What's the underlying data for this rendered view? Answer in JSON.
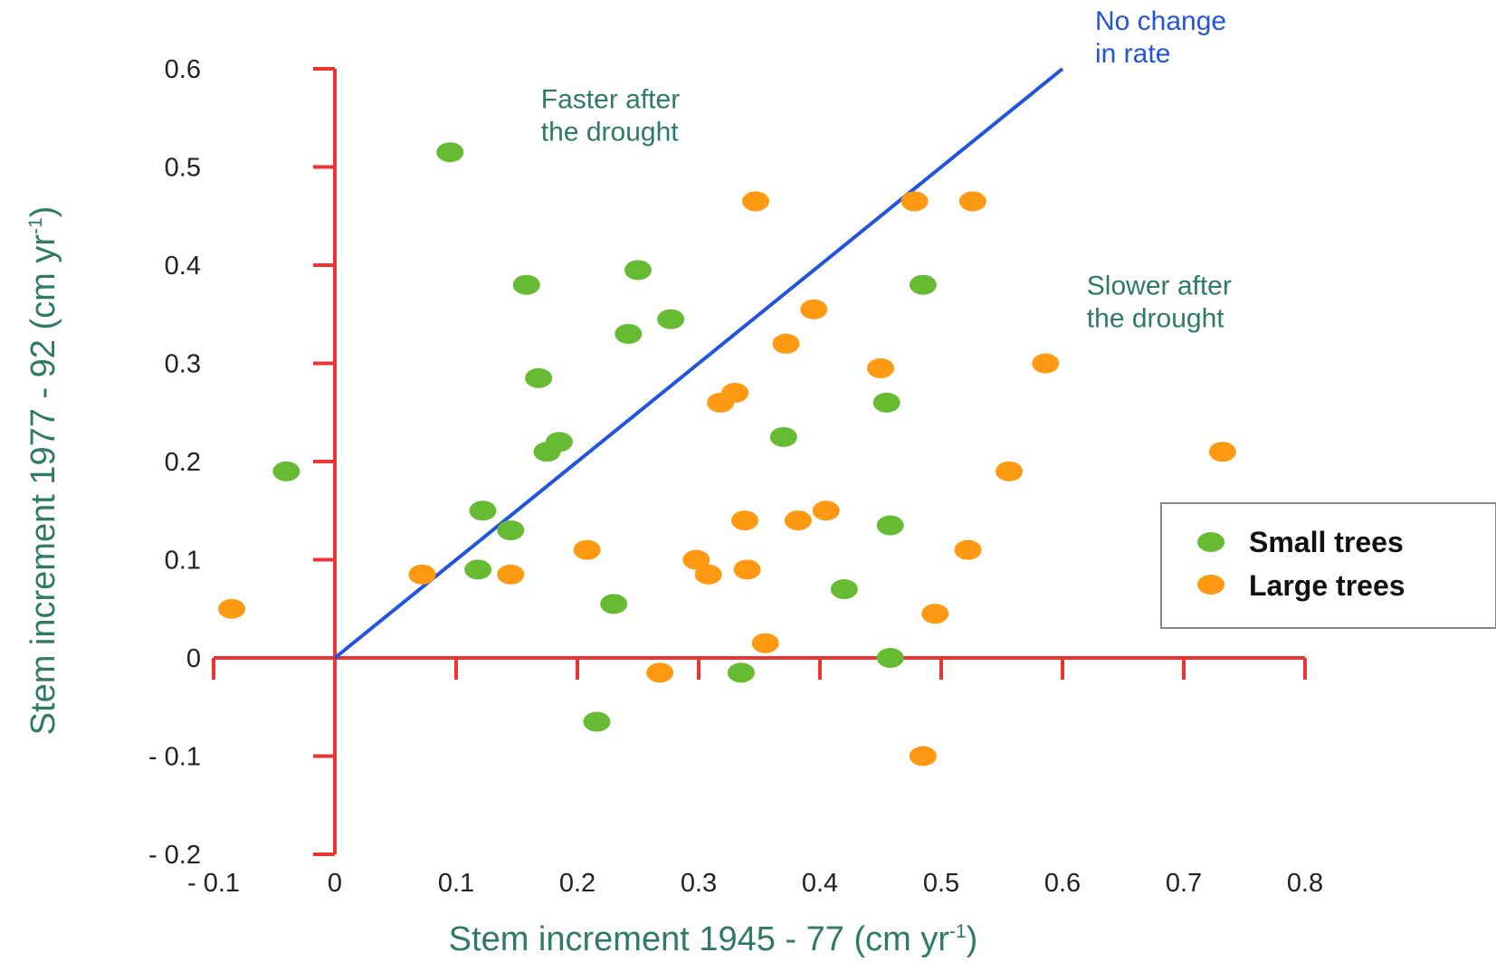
{
  "chart_data": {
    "type": "scatter",
    "title": "",
    "xlabel": "Stem increment  1945 - 77 (cm yr",
    "xlabel_sup": "-1",
    "xlabel_end": ")",
    "ylabel": "Stem increment  1977 - 92 (cm yr",
    "ylabel_sup": "-1",
    "ylabel_end": ")",
    "xlim": [
      -0.1,
      0.8
    ],
    "ylim": [
      -0.2,
      0.6
    ],
    "x_ticks": [
      -0.1,
      0,
      0.1,
      0.2,
      0.3,
      0.4,
      0.5,
      0.6,
      0.7,
      0.8
    ],
    "x_tick_labels": [
      "- 0.1",
      "0",
      "0.1",
      "0.2",
      "0.3",
      "0.4",
      "0.5",
      "0.6",
      "0.7",
      "0.8"
    ],
    "y_ticks": [
      0.6,
      0.5,
      0.4,
      0.3,
      0.2,
      0.1,
      0,
      -0.1,
      -0.2
    ],
    "y_tick_labels": [
      "0.6",
      "0.5",
      "0.4",
      "0.3",
      "0.2",
      "0.1",
      "0",
      "- 0.1",
      "- 0.2"
    ],
    "grid": false,
    "legend_position": "right",
    "axis_color": "#ee3333",
    "reference_line": {
      "label_line1": "No change",
      "label_line2": "in rate",
      "from": [
        0,
        0
      ],
      "to": [
        0.6,
        0.6
      ],
      "color": "#2255dd"
    },
    "annotations": [
      {
        "line1": "Faster after",
        "line2": "the drought",
        "x": 0.17,
        "y": 0.56,
        "color": "#2f7a66"
      },
      {
        "line1": "Slower after",
        "line2": "the drought",
        "x": 0.62,
        "y": 0.37,
        "color": "#2f7a66"
      }
    ],
    "series": [
      {
        "name": "Small trees",
        "color": "#66bb33",
        "points": [
          [
            0.095,
            0.515
          ],
          [
            -0.04,
            0.19
          ],
          [
            0.158,
            0.38
          ],
          [
            0.25,
            0.395
          ],
          [
            0.242,
            0.33
          ],
          [
            0.277,
            0.345
          ],
          [
            0.168,
            0.285
          ],
          [
            0.175,
            0.21
          ],
          [
            0.185,
            0.22
          ],
          [
            0.122,
            0.15
          ],
          [
            0.145,
            0.13
          ],
          [
            0.118,
            0.09
          ],
          [
            0.23,
            0.055
          ],
          [
            0.216,
            -0.065
          ],
          [
            0.335,
            -0.015
          ],
          [
            0.37,
            0.225
          ],
          [
            0.42,
            0.07
          ],
          [
            0.455,
            0.26
          ],
          [
            0.458,
            0.135
          ],
          [
            0.458,
            0.0
          ],
          [
            0.485,
            0.38
          ]
        ]
      },
      {
        "name": "Large trees",
        "color": "#ff9911",
        "points": [
          [
            -0.085,
            0.05
          ],
          [
            0.072,
            0.085
          ],
          [
            0.145,
            0.085
          ],
          [
            0.208,
            0.11
          ],
          [
            0.268,
            -0.015
          ],
          [
            0.298,
            0.1
          ],
          [
            0.308,
            0.085
          ],
          [
            0.318,
            0.26
          ],
          [
            0.33,
            0.27
          ],
          [
            0.338,
            0.14
          ],
          [
            0.34,
            0.09
          ],
          [
            0.347,
            0.465
          ],
          [
            0.355,
            0.015
          ],
          [
            0.372,
            0.32
          ],
          [
            0.382,
            0.14
          ],
          [
            0.395,
            0.355
          ],
          [
            0.405,
            0.15
          ],
          [
            0.45,
            0.295
          ],
          [
            0.478,
            0.465
          ],
          [
            0.485,
            -0.1
          ],
          [
            0.495,
            0.045
          ],
          [
            0.522,
            0.11
          ],
          [
            0.526,
            0.465
          ],
          [
            0.556,
            0.19
          ],
          [
            0.586,
            0.3
          ],
          [
            0.732,
            0.21
          ]
        ]
      }
    ]
  }
}
